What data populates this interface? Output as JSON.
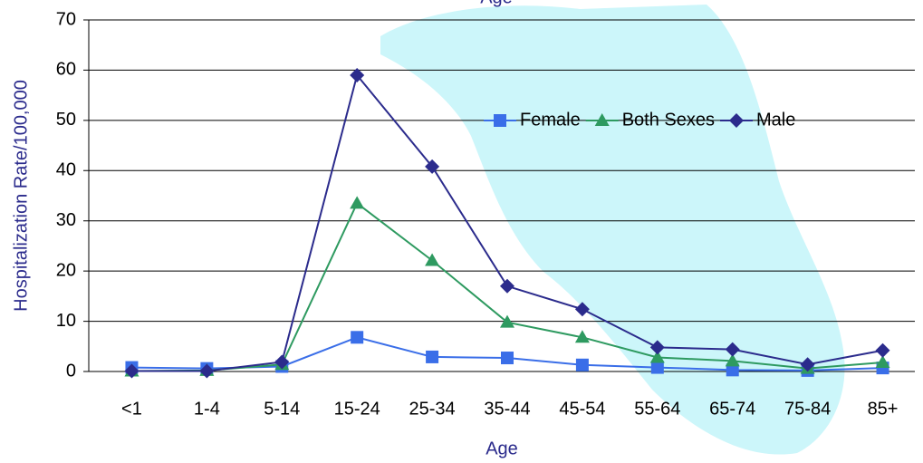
{
  "chart_data": {
    "type": "line",
    "title": "Age",
    "x_label": "Age",
    "y_label": "Hospitalization Rate/100,000",
    "categories": [
      "<1",
      "1-4",
      "5-14",
      "15-24",
      "25-34",
      "35-44",
      "45-54",
      "55-64",
      "65-74",
      "75-84",
      "85+"
    ],
    "series": [
      {
        "name": "Female",
        "color": "#3a6ee8",
        "marker": "square",
        "values": [
          0.8,
          0.6,
          1.0,
          6.8,
          2.9,
          2.7,
          1.3,
          0.8,
          0.3,
          0.2,
          0.7
        ]
      },
      {
        "name": "Both Sexes",
        "color": "#2e9a60",
        "marker": "triangle",
        "values": [
          0.1,
          0.2,
          1.4,
          33.5,
          22.1,
          9.8,
          6.8,
          2.8,
          2.1,
          0.6,
          1.8
        ]
      },
      {
        "name": "Male",
        "color": "#2b2b8c",
        "marker": "diamond",
        "values": [
          0.1,
          0.1,
          1.9,
          59,
          40.8,
          17,
          12.4,
          4.8,
          4.4,
          1.4,
          4.2
        ]
      }
    ],
    "ylim": [
      0,
      70
    ],
    "yticks": [
      0,
      10,
      20,
      30,
      40,
      50,
      60,
      70
    ],
    "grid": true
  }
}
